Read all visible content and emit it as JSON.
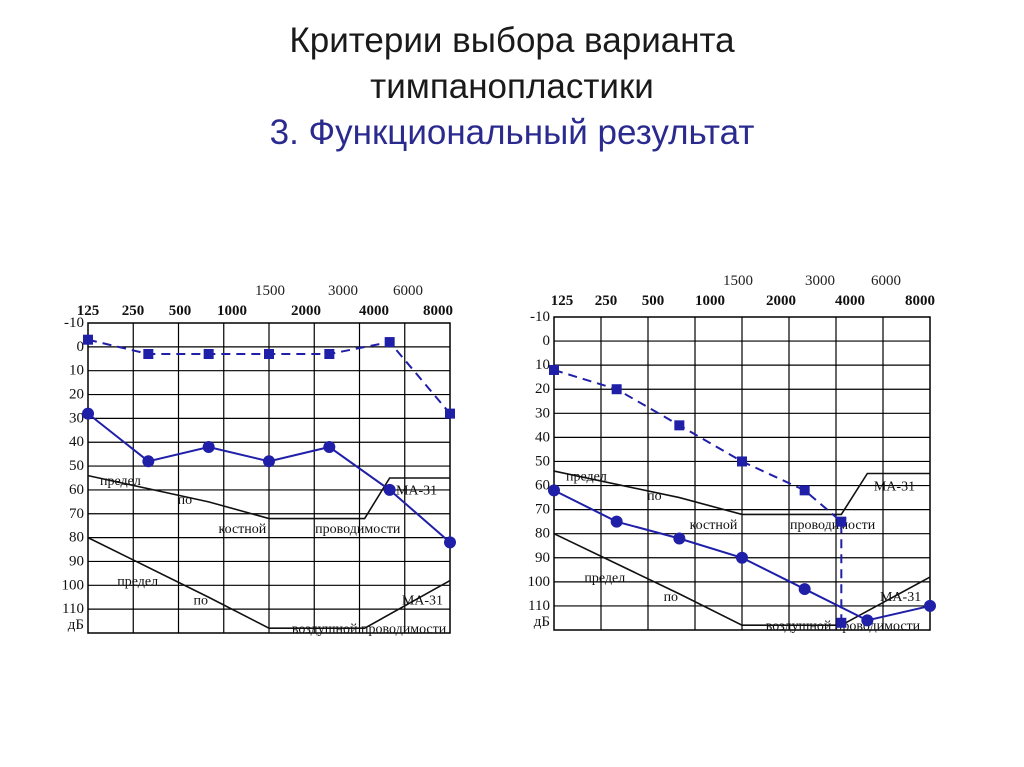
{
  "title": {
    "line1": "Критерии выбора варианта",
    "line2": "тимпанопластики",
    "line3": "3. Функциональный результат"
  },
  "colors": {
    "series": "#1f1fa8",
    "threshold": "#111111",
    "grid": "#000000"
  },
  "chart_data": [
    {
      "type": "line",
      "x_top_labels": [
        "125",
        "250",
        "500",
        "1000",
        "2000",
        "4000",
        "8000"
      ],
      "x_sub_labels": [
        "1500",
        "3000",
        "6000"
      ],
      "y_tick_labels": [
        "-10",
        "0",
        "10",
        "20",
        "30",
        "40",
        "50",
        "60",
        "70",
        "80",
        "90",
        "100",
        "110"
      ],
      "y_unit": "дБ",
      "y_range": [
        -10,
        120
      ],
      "y_inverted": true,
      "x_scale": "log",
      "series": [
        {
          "style": "dashed-square",
          "x": [
            125,
            250,
            500,
            1000,
            2000,
            4000,
            8000
          ],
          "y": [
            -3,
            3,
            3,
            3,
            3,
            -2,
            28
          ]
        },
        {
          "style": "solid-circle",
          "x": [
            125,
            250,
            500,
            1000,
            2000,
            4000,
            8000
          ],
          "y": [
            28,
            48,
            42,
            48,
            42,
            60,
            82
          ]
        }
      ],
      "threshold_lines": [
        {
          "x": [
            125,
            500,
            1000,
            3000,
            4000,
            8000
          ],
          "y": [
            54,
            65,
            72,
            72,
            55,
            55
          ]
        },
        {
          "x": [
            125,
            500,
            1000,
            3000,
            8000
          ],
          "y": [
            80,
            105,
            118,
            118,
            98
          ]
        }
      ],
      "annotations": {
        "bone": [
          "предел",
          "по",
          "костной",
          "проводимости",
          "МА-31"
        ],
        "air": [
          "предел",
          "по",
          "воздушной проводимости",
          "МА-31"
        ]
      }
    },
    {
      "type": "line",
      "x_top_labels": [
        "125",
        "250",
        "500",
        "1000",
        "2000",
        "4000",
        "8000"
      ],
      "x_sub_labels": [
        "1500",
        "3000",
        "6000"
      ],
      "y_tick_labels": [
        "-10",
        "0",
        "10",
        "20",
        "30",
        "40",
        "50",
        "60",
        "70",
        "80",
        "90",
        "100",
        "110"
      ],
      "y_unit": "дБ",
      "y_range": [
        -10,
        120
      ],
      "y_inverted": true,
      "x_scale": "log",
      "series": [
        {
          "style": "dashed-square",
          "x": [
            125,
            250,
            500,
            1000,
            2000,
            3000,
            3000
          ],
          "y": [
            12,
            20,
            35,
            50,
            62,
            75,
            117
          ]
        },
        {
          "style": "solid-circle",
          "x": [
            125,
            250,
            500,
            1000,
            2000,
            4000,
            8000
          ],
          "y": [
            62,
            75,
            82,
            90,
            103,
            116,
            110
          ]
        }
      ],
      "threshold_lines": [
        {
          "x": [
            125,
            500,
            1000,
            3000,
            4000,
            8000
          ],
          "y": [
            54,
            65,
            72,
            72,
            55,
            55
          ]
        },
        {
          "x": [
            125,
            500,
            1000,
            3000,
            8000
          ],
          "y": [
            80,
            105,
            118,
            118,
            98
          ]
        }
      ],
      "annotations": {
        "bone": [
          "предел",
          "по",
          "костной",
          "проводимости",
          "МА-31"
        ],
        "air": [
          "предел",
          "по",
          "воздушной проводимости",
          "МА-31"
        ]
      }
    }
  ]
}
